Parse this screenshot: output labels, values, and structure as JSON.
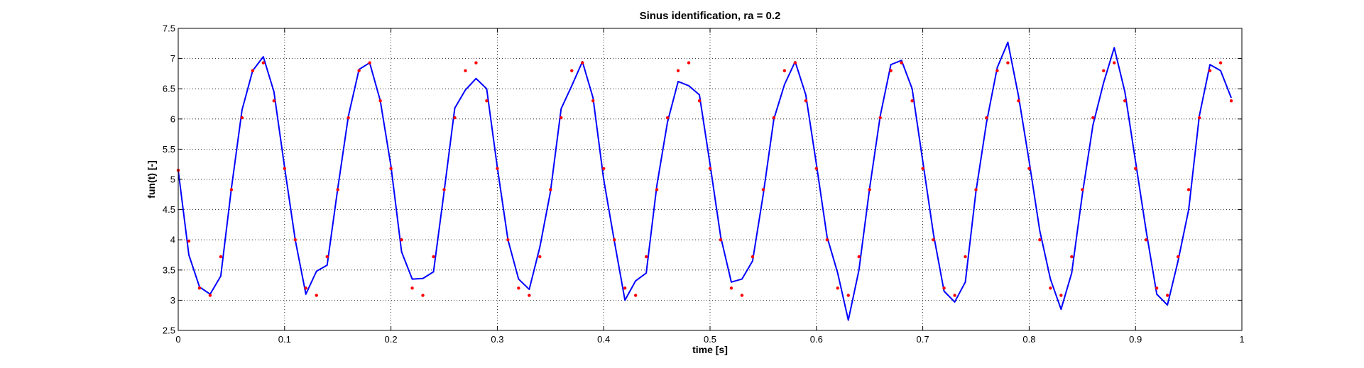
{
  "chart_data": {
    "type": "line",
    "title": "Sinus identification,  ra = 0.2",
    "xlabel": "time  [s]",
    "ylabel": "fun(t)  [-]",
    "xlim": [
      0,
      1
    ],
    "ylim": [
      2.5,
      7.5
    ],
    "xticks": [
      0,
      0.1,
      0.2,
      0.3,
      0.4,
      0.5,
      0.6,
      0.7,
      0.8,
      0.9,
      1
    ],
    "xtick_labels": [
      "0",
      "0.1",
      "0.2",
      "0.3",
      "0.4",
      "0.5",
      "0.6",
      "0.7",
      "0.8",
      "0.9",
      "1"
    ],
    "yticks": [
      2.5,
      3,
      3.5,
      4,
      4.5,
      5,
      5.5,
      6,
      6.5,
      7,
      7.5
    ],
    "ytick_labels": [
      "2.5",
      "3",
      "3.5",
      "4",
      "4.5",
      "5",
      "5.5",
      "6",
      "6.5",
      "7",
      "7.5"
    ],
    "grid": true,
    "grid_style": "dotted",
    "series": [
      {
        "style": "line",
        "color": "#0000ff",
        "x": [
          0,
          0.01,
          0.02,
          0.03,
          0.04,
          0.05,
          0.06,
          0.07,
          0.08,
          0.09,
          0.1,
          0.11,
          0.12,
          0.13,
          0.14,
          0.15,
          0.16,
          0.17,
          0.18,
          0.19,
          0.2,
          0.21,
          0.22,
          0.23,
          0.24,
          0.25,
          0.26,
          0.27,
          0.28,
          0.29,
          0.3,
          0.31,
          0.32,
          0.33,
          0.34,
          0.35,
          0.36,
          0.37,
          0.38,
          0.39,
          0.4,
          0.41,
          0.42,
          0.43,
          0.44,
          0.45,
          0.46,
          0.47,
          0.48,
          0.49,
          0.5,
          0.51,
          0.52,
          0.53,
          0.54,
          0.55,
          0.56,
          0.57,
          0.58,
          0.59,
          0.6,
          0.61,
          0.62,
          0.63,
          0.64,
          0.65,
          0.66,
          0.67,
          0.68,
          0.69,
          0.7,
          0.71,
          0.72,
          0.73,
          0.74,
          0.75,
          0.76,
          0.77,
          0.78,
          0.79,
          0.8,
          0.81,
          0.82,
          0.83,
          0.84,
          0.85,
          0.86,
          0.87,
          0.88,
          0.89,
          0.9,
          0.91,
          0.92,
          0.93,
          0.94,
          0.95,
          0.96,
          0.97,
          0.98,
          0.99
        ],
        "values": [
          5.15,
          3.75,
          3.22,
          3.1,
          3.4,
          4.85,
          6.15,
          6.8,
          7.03,
          6.45,
          5.2,
          4.0,
          3.1,
          3.48,
          3.58,
          4.85,
          6.05,
          6.82,
          6.93,
          6.3,
          5.22,
          3.8,
          3.35,
          3.36,
          3.47,
          4.8,
          6.18,
          6.48,
          6.67,
          6.5,
          5.2,
          4.0,
          3.35,
          3.18,
          3.88,
          4.8,
          6.17,
          6.55,
          6.95,
          6.35,
          5.0,
          3.98,
          3.0,
          3.32,
          3.45,
          4.9,
          5.95,
          6.62,
          6.55,
          6.4,
          5.25,
          4.05,
          3.3,
          3.35,
          3.65,
          4.75,
          6.0,
          6.57,
          6.95,
          6.4,
          5.25,
          4.05,
          3.45,
          2.67,
          3.5,
          4.85,
          6.05,
          6.9,
          6.97,
          6.5,
          5.3,
          4.1,
          3.15,
          2.97,
          3.3,
          4.8,
          5.95,
          6.85,
          7.27,
          6.38,
          5.3,
          4.15,
          3.35,
          2.85,
          3.45,
          4.75,
          5.9,
          6.6,
          7.18,
          6.45,
          5.3,
          4.15,
          3.1,
          2.92,
          3.65,
          4.5,
          6.05,
          6.9,
          6.8,
          6.35
        ]
      },
      {
        "style": "markers",
        "color": "#ff0000",
        "x": [
          0,
          0.01,
          0.02,
          0.03,
          0.04,
          0.05,
          0.06,
          0.07,
          0.08,
          0.09,
          0.1,
          0.11,
          0.12,
          0.13,
          0.14,
          0.15,
          0.16,
          0.17,
          0.18,
          0.19,
          0.2,
          0.21,
          0.22,
          0.23,
          0.24,
          0.25,
          0.26,
          0.27,
          0.28,
          0.29,
          0.3,
          0.31,
          0.32,
          0.33,
          0.34,
          0.35,
          0.36,
          0.37,
          0.38,
          0.39,
          0.4,
          0.41,
          0.42,
          0.43,
          0.44,
          0.45,
          0.46,
          0.47,
          0.48,
          0.49,
          0.5,
          0.51,
          0.52,
          0.53,
          0.54,
          0.55,
          0.56,
          0.57,
          0.58,
          0.59,
          0.6,
          0.61,
          0.62,
          0.63,
          0.64,
          0.65,
          0.66,
          0.67,
          0.68,
          0.69,
          0.7,
          0.71,
          0.72,
          0.73,
          0.74,
          0.75,
          0.76,
          0.77,
          0.78,
          0.79,
          0.8,
          0.81,
          0.82,
          0.83,
          0.84,
          0.85,
          0.86,
          0.87,
          0.88,
          0.89,
          0.9,
          0.91,
          0.92,
          0.93,
          0.94,
          0.95,
          0.96,
          0.97,
          0.98,
          0.99
        ],
        "values": [
          5.15,
          3.98,
          3.2,
          3.08,
          3.72,
          4.83,
          6.02,
          6.8,
          6.93,
          6.3,
          5.18,
          4.0,
          3.2,
          3.08,
          3.72,
          4.83,
          6.02,
          6.8,
          6.93,
          6.3,
          5.18,
          4.0,
          3.2,
          3.08,
          3.72,
          4.83,
          6.02,
          6.8,
          6.93,
          6.3,
          5.18,
          4.0,
          3.2,
          3.08,
          3.72,
          4.83,
          6.02,
          6.8,
          6.93,
          6.3,
          5.18,
          4.0,
          3.2,
          3.08,
          3.72,
          4.83,
          6.02,
          6.8,
          6.93,
          6.3,
          5.18,
          4.0,
          3.2,
          3.08,
          3.72,
          4.83,
          6.02,
          6.8,
          6.93,
          6.3,
          5.18,
          4.0,
          3.2,
          3.08,
          3.72,
          4.83,
          6.02,
          6.8,
          6.93,
          6.3,
          5.18,
          4.0,
          3.2,
          3.08,
          3.72,
          4.83,
          6.02,
          6.8,
          6.93,
          6.3,
          5.18,
          4.0,
          3.2,
          3.08,
          3.72,
          4.83,
          6.02,
          6.8,
          6.93,
          6.3,
          5.18,
          4.0,
          3.2,
          3.08,
          3.72,
          4.83,
          6.02,
          6.8,
          6.93,
          6.3
        ]
      }
    ]
  }
}
